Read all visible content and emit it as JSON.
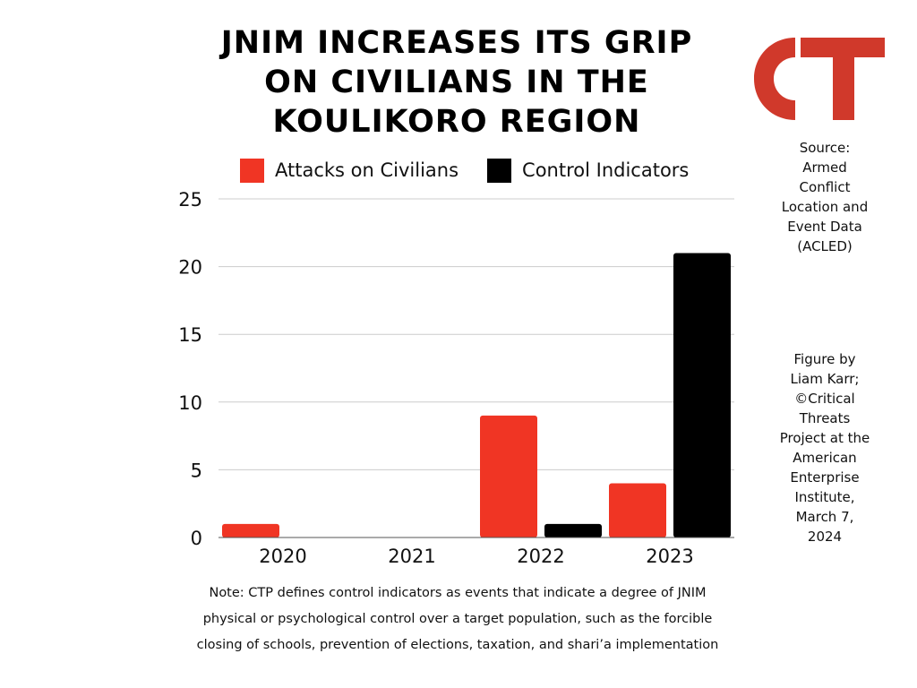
{
  "title": {
    "lines": [
      "JNIM INCREASES ITS GRIP",
      "ON CIVILIANS IN THE",
      "KOULIKORO REGION"
    ]
  },
  "logo": {
    "text": "CT",
    "color": "#D0392B"
  },
  "source": {
    "lines": [
      "Source:",
      "Armed",
      "Conflict",
      "Location and",
      "Event Data",
      "(ACLED)"
    ]
  },
  "credit": {
    "lines": [
      "Figure by",
      "Liam Karr;",
      "©Critical",
      "Threats",
      "Project at the",
      "American",
      "Enterprise",
      "Institute,",
      "March 7,",
      "2024"
    ]
  },
  "note": {
    "lines": [
      "Note: CTP defines control indicators as events that indicate a degree of JNIM",
      "physical or psychological control over a target population, such as the forcible",
      "closing of schools, prevention of elections, taxation, and shari’a implementation"
    ]
  },
  "chart_data": {
    "type": "bar",
    "title": "JNIM INCREASES ITS GRIP ON CIVILIANS IN THE KOULIKORO REGION",
    "categories": [
      "2020",
      "2021",
      "2022",
      "2023"
    ],
    "series": [
      {
        "name": "Attacks on Civilians",
        "values": [
          1,
          0,
          9,
          4
        ],
        "color": "#F03524"
      },
      {
        "name": "Control Indicators",
        "values": [
          0,
          0,
          1,
          21
        ],
        "color": "#000000"
      }
    ],
    "ylim": [
      0,
      25
    ],
    "yticks": [
      "0",
      "5",
      "10",
      "15",
      "20",
      "25"
    ],
    "xlabel": "",
    "ylabel": "",
    "grid": true,
    "legend_position": "top"
  }
}
